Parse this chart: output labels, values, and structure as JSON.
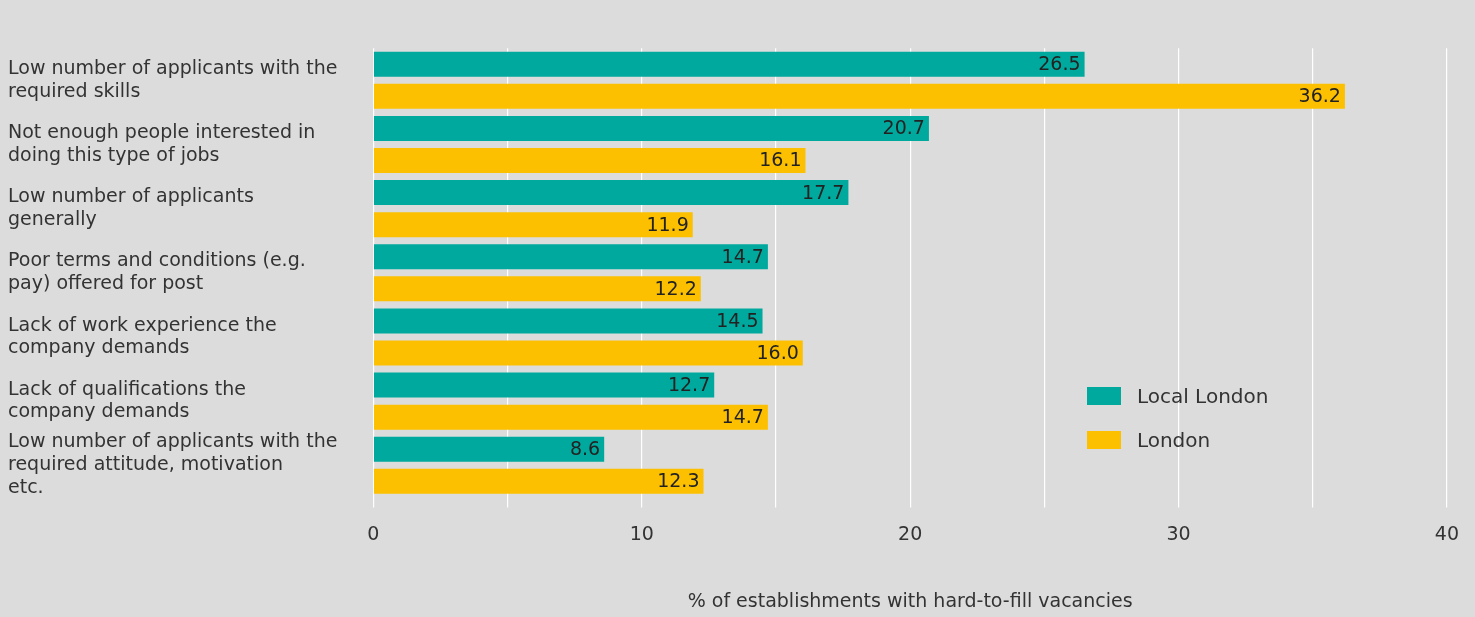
{
  "chart_data": {
    "type": "bar",
    "orientation": "horizontal",
    "xlabel": "% of establishments with hard-to-fill vacancies",
    "categories": [
      "Low number of applicants with the required skills",
      "Not enough people interested in doing this type of jobs",
      "Low number of applicants generally",
      "Poor terms and conditions (e.g. pay) offered for post",
      "Lack of work experience the company demands",
      "Lack of qualifications the company demands",
      "Low number of applicants with the required attitude, motivation etc."
    ],
    "series": [
      {
        "name": "Local London",
        "color": "#00a99d",
        "values": [
          26.5,
          20.7,
          17.7,
          14.7,
          14.5,
          12.7,
          8.6
        ]
      },
      {
        "name": "London",
        "color": "#fcc000",
        "values": [
          36.2,
          16.1,
          11.9,
          12.2,
          16.0,
          14.7,
          12.3
        ]
      }
    ],
    "value_labels": [
      [
        "26.5",
        "20.7",
        "17.7",
        "14.7",
        "14.5",
        "12.7",
        "8.6"
      ],
      [
        "36.2",
        "16.1",
        "11.9",
        "12.2",
        "16.0",
        "14.7",
        "12.3"
      ]
    ],
    "xlim": [
      0,
      40
    ],
    "xticks": [
      0,
      {
        "value": 5,
        "label": null
      },
      10,
      {
        "value": 15,
        "label": null
      },
      20,
      {
        "value": 25,
        "label": null
      },
      30,
      {
        "value": 35,
        "label": null
      },
      40
    ],
    "grid": "x",
    "legend": "bottom right"
  }
}
